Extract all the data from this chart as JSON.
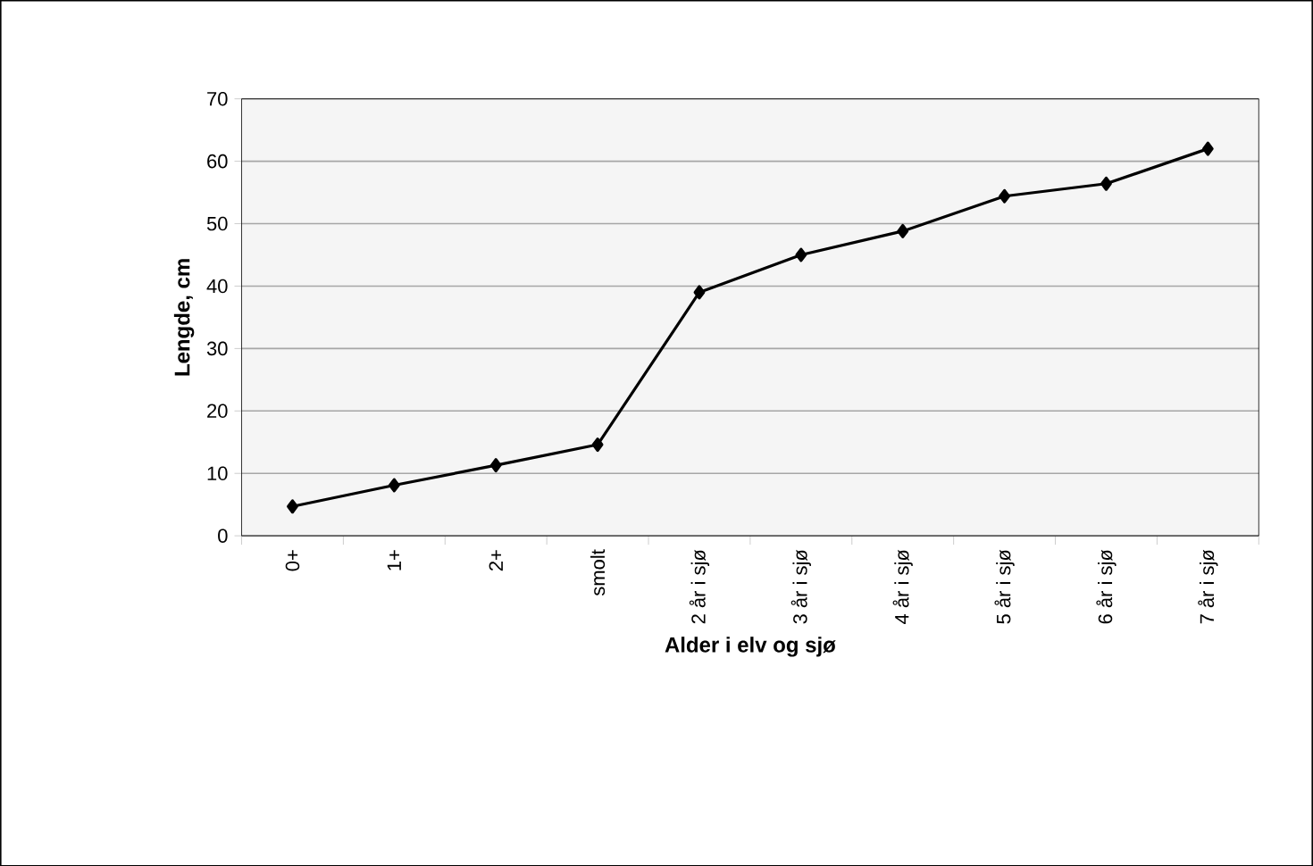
{
  "chart_data": {
    "type": "line",
    "xlabel": "Alder i elv og sjø",
    "ylabel": "Lengde, cm",
    "categories": [
      "0+",
      "1+",
      "2+",
      "smolt",
      "2 år i sjø",
      "3 år i sjø",
      "4 år i sjø",
      "5 år i sjø",
      "6 år i sjø",
      "7 år i sjø"
    ],
    "series": [
      {
        "color": "#000000",
        "values": [
          4.7,
          8.1,
          11.3,
          14.6,
          39.0,
          45.0,
          48.8,
          54.4,
          56.4,
          62.0
        ]
      }
    ],
    "ylim": [
      0,
      70
    ],
    "yticks": [
      0,
      10,
      20,
      30,
      40,
      50,
      60,
      70
    ],
    "grid": "y",
    "marker": "diamond",
    "line_style": "solid"
  }
}
